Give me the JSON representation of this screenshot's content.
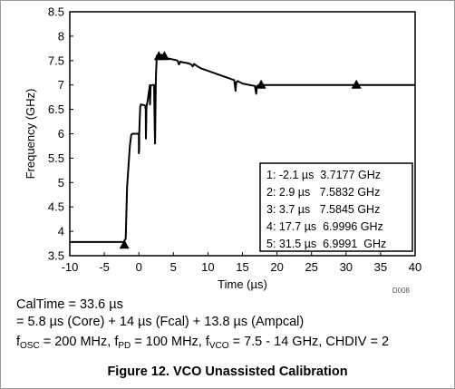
{
  "chart_data": {
    "type": "line",
    "xlabel": "Time (µs)",
    "ylabel": "Frequency (GHz)",
    "xlim": [
      -10,
      40
    ],
    "ylim": [
      3.5,
      8.5
    ],
    "x_ticks": [
      "-10",
      "-5",
      "0",
      "5",
      "10",
      "15",
      "20",
      "25",
      "30",
      "35",
      "40"
    ],
    "y_ticks": [
      "3.5",
      "4",
      "4.5",
      "5",
      "5.5",
      "6",
      "6.5",
      "7",
      "7.5",
      "8",
      "8.5"
    ],
    "grid": false,
    "doc_id": "D008",
    "series": [
      {
        "x": [
          -10,
          -2.2,
          -1.9,
          -1.7,
          -1.5,
          -1.3,
          -1.1,
          -0.9,
          -0.8,
          -0.6,
          -0.5,
          -0.2,
          0,
          0,
          0.05,
          0.05,
          0.2,
          0.3,
          0.9,
          1.0,
          1.02,
          1.1,
          1.3,
          1.6,
          1.62,
          1.7,
          1.8,
          2.1,
          2.2,
          2.3,
          2.35,
          2.45,
          2.5,
          2.6,
          2.7,
          2.9,
          3.1,
          3.3,
          3.7,
          4.0,
          5.0,
          5.6,
          5.8,
          6.0,
          6.5,
          7.0,
          7.6,
          7.8,
          8.0,
          8.5,
          9.0,
          10.0,
          11.0,
          12.0,
          13.0,
          13.8,
          14.0,
          14.1,
          14.3,
          15.0,
          16.0,
          16.8,
          17.0,
          17.1,
          17.3,
          17.7,
          18.0,
          20,
          25,
          30,
          31.5,
          35,
          40
        ],
        "y": [
          3.78,
          3.78,
          3.85,
          4.9,
          5.35,
          5.75,
          5.98,
          6.0,
          6.0,
          6.0,
          6.0,
          6.0,
          6.0,
          5.6,
          5.7,
          6.0,
          6.55,
          6.6,
          6.58,
          6.5,
          5.9,
          6.55,
          6.7,
          7.0,
          6.6,
          6.98,
          6.99,
          7.0,
          7.0,
          6.1,
          5.8,
          7.05,
          7.3,
          7.6,
          7.58,
          7.58,
          7.6,
          7.62,
          7.58,
          7.55,
          7.52,
          7.5,
          7.42,
          7.48,
          7.46,
          7.45,
          7.42,
          7.38,
          7.43,
          7.38,
          7.34,
          7.29,
          7.24,
          7.19,
          7.14,
          7.1,
          6.88,
          7.05,
          7.08,
          7.03,
          7.0,
          6.98,
          6.82,
          6.98,
          6.99,
          7.0,
          7.0,
          7.0,
          7.0,
          7.0,
          7.0,
          7.0,
          7.0
        ]
      }
    ],
    "markers": [
      {
        "x": -2.1,
        "y": 3.7177,
        "label": "1: -2.1 µs  3.7177 GHz"
      },
      {
        "x": 2.9,
        "y": 7.5832,
        "label": "2: 2.9 µs   7.5832 GHz"
      },
      {
        "x": 3.7,
        "y": 7.5845,
        "label": "3: 3.7 µs   7.5845 GHz"
      },
      {
        "x": 17.7,
        "y": 6.9996,
        "label": "4: 17.7 µs  6.9996 GHz"
      },
      {
        "x": 31.5,
        "y": 6.9991,
        "label": "5: 31.5 µs  6.9991  GHz"
      }
    ]
  },
  "caption": {
    "line1": "CalTime = 33.6 µs",
    "line2": "= 5.8 µs (Core) + 14 µs (Fcal) + 13.8 µs (Ampcal)",
    "line3": {
      "f1": "f",
      "f1_sub": "OSC",
      "f1_val": " = 200 MHz, ",
      "f2": "f",
      "f2_sub": "PD",
      "f2_val": " = 100 MHz, ",
      "f3": "f",
      "f3_sub": "VCO",
      "f3_val": " = 7.5 - 14 GHz, CHDIV = 2"
    },
    "figure": "Figure 12. VCO Unassisted Calibration"
  }
}
